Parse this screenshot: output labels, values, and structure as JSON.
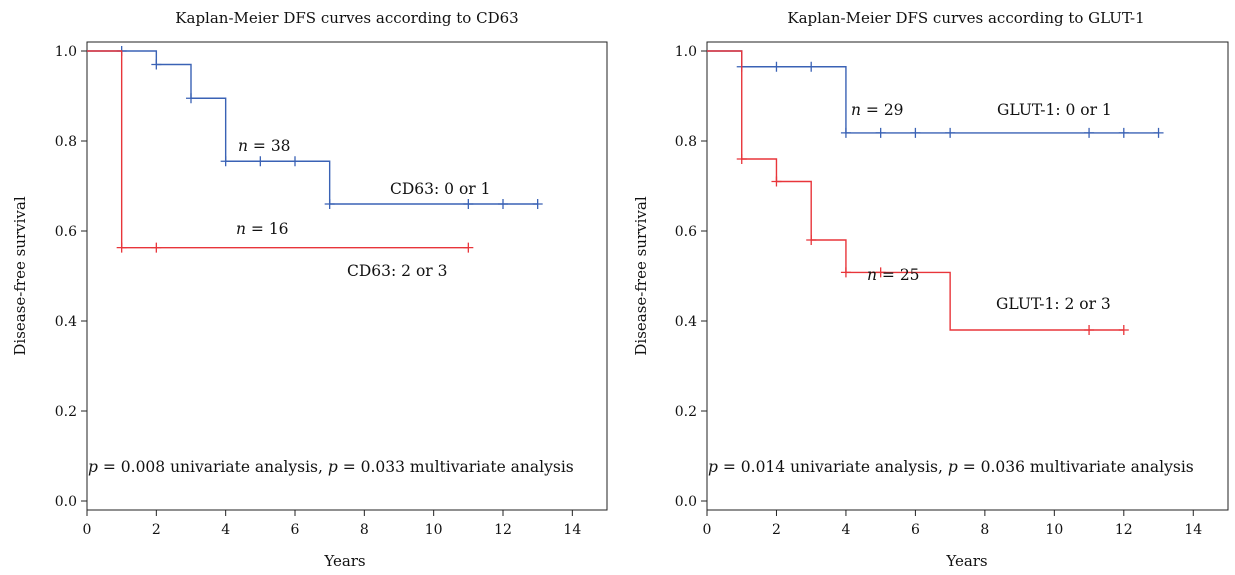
{
  "colors": {
    "blue": "#3a62b5",
    "red": "#e8353a",
    "axis": "#222222",
    "text": "#111111"
  },
  "chart_data": [
    {
      "type": "line",
      "title": "Kaplan-Meier DFS curves according to CD63",
      "xlabel": "Years",
      "ylabel": "Disease-free survival",
      "xlim": [
        0,
        15
      ],
      "ylim": [
        -0.02,
        1.02
      ],
      "xticks": [
        "0",
        "2",
        "4",
        "6",
        "8",
        "10",
        "12",
        "14"
      ],
      "yticks": [
        "0.0",
        "0.2",
        "0.4",
        "0.6",
        "0.8",
        "1.0"
      ],
      "grid": false,
      "series": [
        {
          "name": "CD63: 0 or 1",
          "color": "#3a62b5",
          "n_label": "n = 38",
          "steps": [
            [
              0,
              1.0
            ],
            [
              2,
              0.97
            ],
            [
              3,
              0.895
            ],
            [
              4,
              0.755
            ],
            [
              7,
              0.66
            ],
            [
              13,
              0.66
            ]
          ],
          "censor_x": [
            1,
            2,
            3,
            4,
            5,
            6,
            7,
            11,
            12,
            13
          ]
        },
        {
          "name": "CD63: 2 or 3",
          "color": "#e8353a",
          "n_label": "n = 16",
          "steps": [
            [
              0,
              1.0
            ],
            [
              1,
              0.563
            ],
            [
              11,
              0.563
            ]
          ],
          "censor_x": [
            1,
            2,
            11
          ]
        }
      ],
      "annotation": "p = 0.008 univariate analysis, p = 0.033 multivariate analysis"
    },
    {
      "type": "line",
      "title": "Kaplan-Meier DFS curves according to GLUT-1",
      "xlabel": "Years",
      "ylabel": "Disease-free survival",
      "xlim": [
        0,
        15
      ],
      "ylim": [
        -0.02,
        1.02
      ],
      "xticks": [
        "0",
        "2",
        "4",
        "6",
        "8",
        "10",
        "12",
        "14"
      ],
      "yticks": [
        "0.0",
        "0.2",
        "0.4",
        "0.6",
        "0.8",
        "1.0"
      ],
      "grid": false,
      "series": [
        {
          "name": "GLUT-1: 0 or 1",
          "color": "#3a62b5",
          "n_label": "n = 29",
          "steps": [
            [
              0,
              1.0
            ],
            [
              1,
              0.965
            ],
            [
              4,
              0.818
            ],
            [
              13,
              0.818
            ]
          ],
          "censor_x": [
            1,
            2,
            3,
            4,
            5,
            6,
            7,
            11,
            12,
            13
          ]
        },
        {
          "name": "GLUT-1: 2 or 3",
          "color": "#e8353a",
          "n_label": "n = 25",
          "steps": [
            [
              0,
              1.0
            ],
            [
              1,
              0.76
            ],
            [
              2,
              0.71
            ],
            [
              3,
              0.58
            ],
            [
              4,
              0.508
            ],
            [
              7,
              0.38
            ],
            [
              12,
              0.38
            ]
          ],
          "censor_x": [
            1,
            2,
            3,
            4,
            5,
            11,
            12
          ]
        }
      ],
      "annotation": "p = 0.014 univariate analysis, p = 0.036 multivariate analysis"
    }
  ]
}
